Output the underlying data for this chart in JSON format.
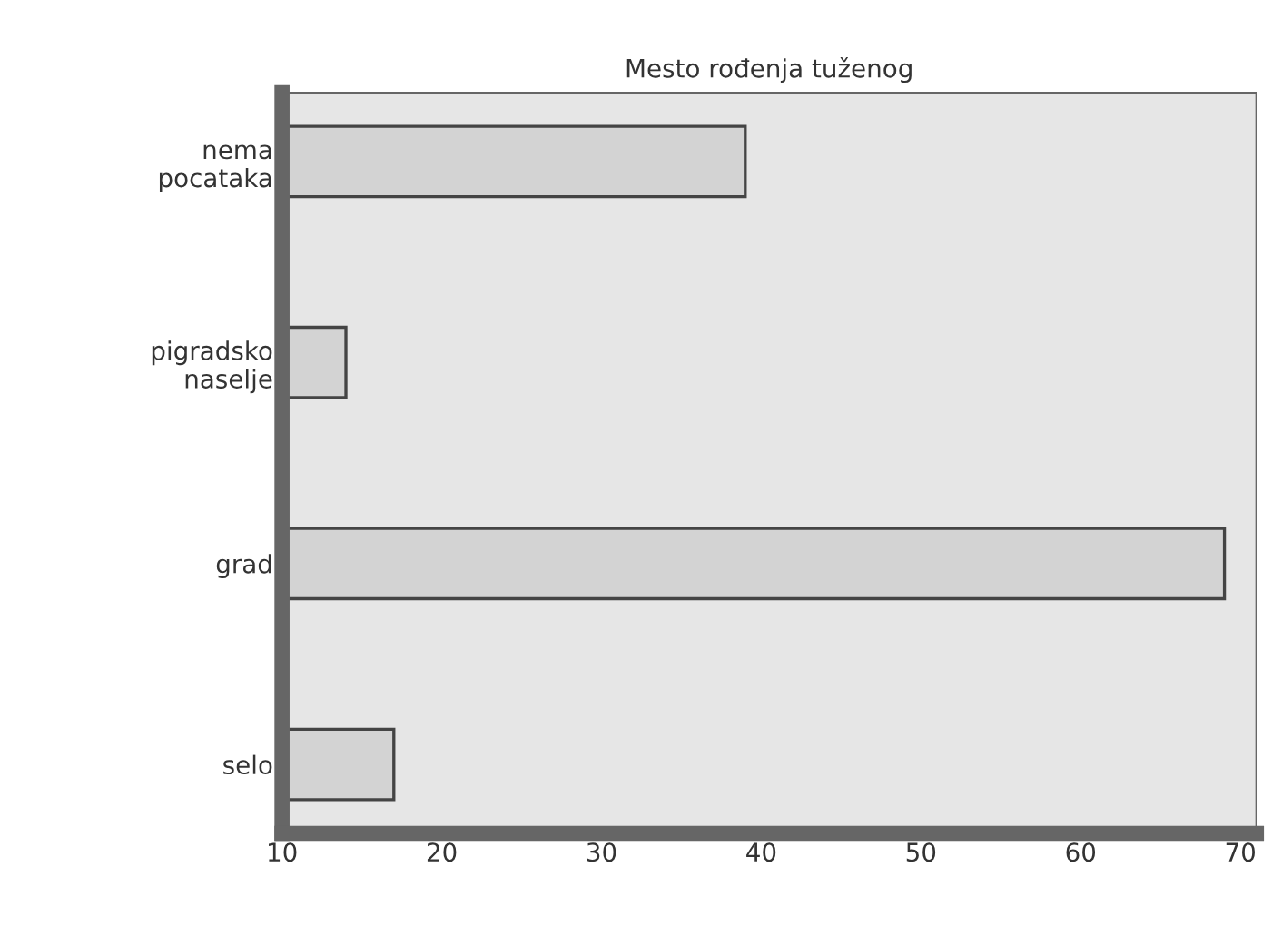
{
  "chart_data": {
    "type": "bar",
    "orientation": "horizontal",
    "title": "Mesto rođenja tuženog",
    "categories": [
      "nema\npocataka",
      "pigradsko\nnaselje",
      "grad",
      "selo"
    ],
    "values": [
      39,
      14,
      69,
      17
    ],
    "color": "#d3d3d3",
    "xlim": [
      10,
      71
    ],
    "xticks": [
      10,
      20,
      30,
      40,
      50,
      60,
      70
    ],
    "grid": false,
    "legend": false
  }
}
